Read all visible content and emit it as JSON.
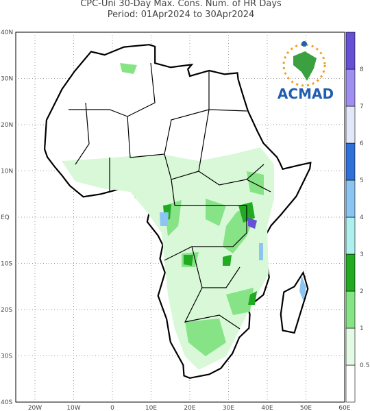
{
  "header": {
    "title": "CPC-Uni 30-Day Max. Cons. Num. of HR Days",
    "subtitle": "Period: 01Apr2024 to 30Apr2024"
  },
  "map": {
    "lat_labels": [
      "40N",
      "30N",
      "20N",
      "10N",
      "EQ",
      "10S",
      "20S",
      "30S",
      "40S"
    ],
    "lon_labels": [
      "20W",
      "10W",
      "0",
      "10E",
      "20E",
      "30E",
      "40E",
      "50E",
      "60E"
    ],
    "grid": true
  },
  "legend": {
    "levels": [
      0.5,
      1,
      2,
      3,
      4,
      5,
      6,
      7,
      8
    ],
    "colors": [
      "#ffffff",
      "#e4fae4",
      "#86e486",
      "#22aa22",
      "#aef0ee",
      "#8cc4f2",
      "#2f6fd8",
      "#e2e8f8",
      "#a08ef0",
      "#6650d6"
    ]
  },
  "logo": {
    "text": "ACMAD"
  }
}
